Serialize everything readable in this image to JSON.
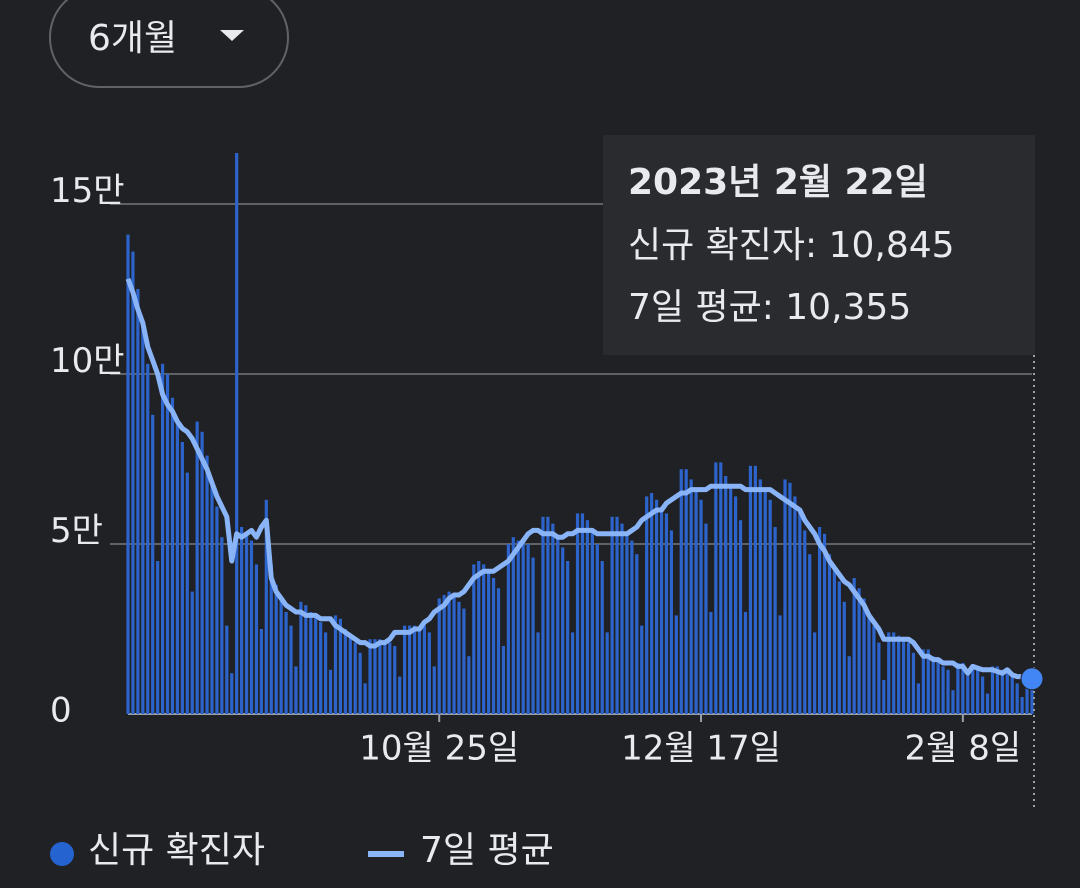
{
  "period_selector": "6개월",
  "chart_data": {
    "type": "bar",
    "ylim": [
      0,
      165000
    ],
    "yticks": [
      0,
      {
        "value": 50000,
        "label": "5만"
      },
      {
        "value": 100000,
        "label": "10만"
      },
      {
        "value": 150000,
        "label": "15만"
      }
    ],
    "xticks": [
      {
        "value": 63,
        "label": "10월 25일"
      },
      {
        "value": 116,
        "label": "12월 17일"
      },
      {
        "value": 169,
        "label": "2월 8일"
      }
    ],
    "grid": true,
    "series": [
      {
        "name": "신규 확진자",
        "type": "bar",
        "color": "#2c64cc",
        "values": [
          141000,
          136000,
          125000,
          115000,
          103000,
          88000,
          45000,
          103000,
          100000,
          93000,
          86000,
          80000,
          71000,
          36000,
          86000,
          83000,
          76000,
          68000,
          61000,
          52000,
          26000,
          12000,
          165000,
          55000,
          53000,
          51000,
          44000,
          25000,
          63000,
          44000,
          38000,
          34000,
          30000,
          26000,
          14000,
          33000,
          32000,
          30000,
          29000,
          27000,
          24000,
          13000,
          29000,
          28000,
          25000,
          23000,
          21000,
          18000,
          9000,
          22000,
          22000,
          22000,
          21000,
          21000,
          20000,
          11000,
          26000,
          26000,
          26000,
          25000,
          26000,
          24000,
          14000,
          34000,
          35000,
          36000,
          35000,
          33000,
          31000,
          17000,
          44000,
          45000,
          44000,
          42000,
          40000,
          37000,
          20000,
          50000,
          52000,
          51000,
          51000,
          50000,
          46000,
          24000,
          58000,
          58000,
          56000,
          52000,
          49000,
          45000,
          24000,
          59000,
          59000,
          57000,
          54000,
          50000,
          45000,
          24000,
          58000,
          58000,
          56000,
          53000,
          51000,
          47000,
          26000,
          64000,
          65000,
          63000,
          60000,
          59000,
          54000,
          29000,
          72000,
          72000,
          69000,
          66000,
          63000,
          56000,
          30000,
          74000,
          74000,
          70000,
          67000,
          64000,
          57000,
          30000,
          73000,
          73000,
          69000,
          66000,
          63000,
          55000,
          29000,
          69000,
          68000,
          64000,
          60000,
          54000,
          47000,
          24000,
          55000,
          53000,
          47000,
          43000,
          39000,
          33000,
          17000,
          40000,
          37000,
          34000,
          29000,
          26000,
          21000,
          10000,
          24000,
          24000,
          23000,
          22000,
          21000,
          18000,
          9000,
          19000,
          19000,
          17000,
          16000,
          14000,
          13000,
          7000,
          15000,
          15000,
          13000,
          14000,
          13000,
          11000,
          6000,
          14000,
          14000,
          13000,
          13000,
          11000,
          9000,
          5000,
          12000,
          10845
        ]
      },
      {
        "name": "7일 평균",
        "type": "line",
        "color": "#8ab4f8",
        "values": [
          128000,
          124000,
          119000,
          115000,
          108000,
          104000,
          100000,
          94000,
          91000,
          89000,
          86000,
          84000,
          83000,
          81000,
          78000,
          75000,
          72000,
          68000,
          64000,
          61000,
          58000,
          45000,
          53000,
          52000,
          53000,
          54000,
          52000,
          55000,
          57000,
          40000,
          36000,
          34000,
          32000,
          31000,
          30000,
          30000,
          29000,
          29000,
          29000,
          28000,
          28000,
          28000,
          26000,
          25000,
          24000,
          23000,
          22000,
          21000,
          21000,
          20000,
          20000,
          21000,
          21000,
          22000,
          24000,
          24000,
          24000,
          24000,
          25000,
          25000,
          27000,
          28000,
          30000,
          31000,
          32000,
          34000,
          35000,
          35000,
          36000,
          38000,
          40000,
          41000,
          42000,
          42000,
          42000,
          43000,
          44000,
          45000,
          47000,
          49000,
          51000,
          53000,
          54000,
          54000,
          53000,
          53000,
          53000,
          52000,
          52000,
          53000,
          53000,
          54000,
          54000,
          54000,
          54000,
          53000,
          53000,
          53000,
          53000,
          53000,
          53000,
          53000,
          54000,
          55000,
          57000,
          58000,
          59000,
          60000,
          60000,
          62000,
          63000,
          64000,
          65000,
          65000,
          66000,
          66000,
          66000,
          66000,
          67000,
          67000,
          67000,
          67000,
          67000,
          67000,
          67000,
          66000,
          66000,
          66000,
          66000,
          66000,
          66000,
          65000,
          64000,
          63000,
          62000,
          61000,
          60000,
          57000,
          55000,
          53000,
          50000,
          48000,
          45000,
          43000,
          41000,
          39000,
          38000,
          36000,
          34000,
          32000,
          29000,
          27000,
          25000,
          22000,
          22000,
          22000,
          22000,
          22000,
          22000,
          21000,
          19000,
          17000,
          17000,
          16000,
          16000,
          15000,
          15000,
          15000,
          14000,
          14000,
          12000,
          14000,
          13500,
          13000,
          13000,
          13000,
          12500,
          12000,
          13000,
          11500,
          11000,
          11000,
          10500,
          10355
        ]
      }
    ],
    "tooltip": {
      "title": "2023년 2월 22일",
      "lines": [
        "신규 확진자: 10,845",
        "7일 평균: 10,355"
      ]
    }
  }
}
